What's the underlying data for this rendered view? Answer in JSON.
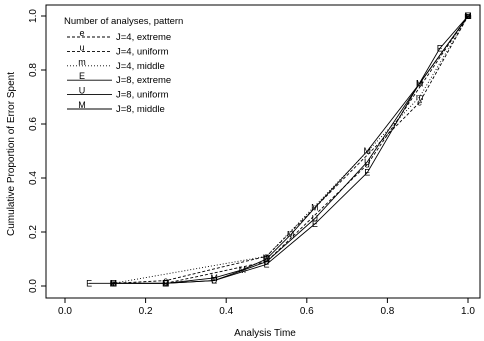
{
  "chart_data": {
    "type": "line",
    "xlabel": "Analysis Time",
    "ylabel": "Cumulative Proportion of Error Spent",
    "xlim": [
      0.0,
      1.0
    ],
    "ylim": [
      0.0,
      1.0
    ],
    "x_ticks": [
      "0.0",
      "0.2",
      "0.4",
      "0.6",
      "0.8",
      "1.0"
    ],
    "y_ticks": [
      "0.0",
      "0.2",
      "0.4",
      "0.6",
      "0.8",
      "1.0"
    ],
    "grid": false,
    "legend": {
      "title": "Number of analyses, pattern",
      "placement": "top-left"
    },
    "series": [
      {
        "name": "J=4, extreme",
        "symbol": "e",
        "dash": "dashed",
        "x": [
          0.12,
          0.25,
          0.5,
          0.88,
          1.0
        ],
        "y": [
          0.01,
          0.02,
          0.11,
          0.68,
          1.0
        ]
      },
      {
        "name": "J=4, uniform",
        "symbol": "u",
        "dash": "dashed",
        "x": [
          0.25,
          0.5,
          0.75,
          1.0
        ],
        "y": [
          0.01,
          0.09,
          0.45,
          1.0
        ]
      },
      {
        "name": "J=4, middle",
        "symbol": "m",
        "dash": "dotted",
        "x": [
          0.12,
          0.5,
          0.88,
          1.0
        ],
        "y": [
          0.01,
          0.11,
          0.7,
          1.0
        ]
      },
      {
        "name": "J=8, extreme",
        "symbol": "E",
        "dash": "solid",
        "x": [
          0.06,
          0.12,
          0.25,
          0.37,
          0.5,
          0.62,
          0.75,
          0.93,
          1.0
        ],
        "y": [
          0.01,
          0.01,
          0.01,
          0.02,
          0.08,
          0.23,
          0.42,
          0.88,
          1.0
        ]
      },
      {
        "name": "J=8, uniform",
        "symbol": "U",
        "dash": "solid",
        "x": [
          0.12,
          0.25,
          0.37,
          0.5,
          0.62,
          0.75,
          0.88,
          1.0
        ],
        "y": [
          0.01,
          0.01,
          0.02,
          0.09,
          0.25,
          0.46,
          0.75,
          1.0
        ]
      },
      {
        "name": "J=8, middle",
        "symbol": "M",
        "dash": "solid",
        "x": [
          0.12,
          0.25,
          0.37,
          0.44,
          0.5,
          0.56,
          0.62,
          0.75,
          0.88,
          1.0
        ],
        "y": [
          0.01,
          0.01,
          0.03,
          0.06,
          0.1,
          0.19,
          0.29,
          0.5,
          0.75,
          1.0
        ]
      }
    ]
  }
}
